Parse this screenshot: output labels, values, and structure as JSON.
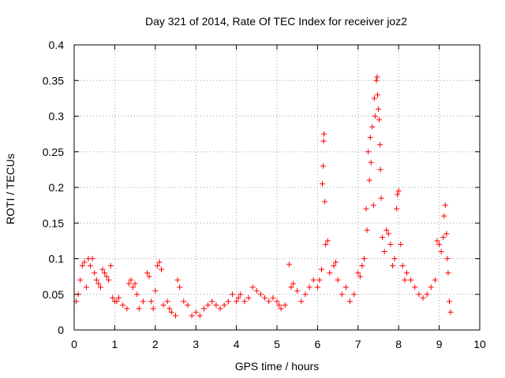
{
  "chart_data": {
    "type": "scatter",
    "title": "Day 321 of 2014, Rate Of TEC Index for receiver joz2",
    "xlabel": "GPS time / hours",
    "ylabel": "ROTI / TECUs",
    "xlim": [
      0,
      10
    ],
    "ylim": [
      0,
      0.4
    ],
    "xticks": [
      "0",
      "1",
      "2",
      "3",
      "4",
      "5",
      "6",
      "7",
      "8",
      "9",
      "10"
    ],
    "yticks": [
      "0",
      "0.05",
      "0.1",
      "0.15",
      "0.2",
      "0.25",
      "0.3",
      "0.35",
      "0.4"
    ],
    "grid": true,
    "marker": "+",
    "color": "#ff0000",
    "series": [
      {
        "name": "ROTI joz2",
        "points": [
          [
            0.05,
            0.04
          ],
          [
            0.1,
            0.05
          ],
          [
            0.15,
            0.07
          ],
          [
            0.2,
            0.09
          ],
          [
            0.25,
            0.095
          ],
          [
            0.3,
            0.06
          ],
          [
            0.35,
            0.1
          ],
          [
            0.4,
            0.09
          ],
          [
            0.45,
            0.1
          ],
          [
            0.5,
            0.08
          ],
          [
            0.55,
            0.07
          ],
          [
            0.6,
            0.065
          ],
          [
            0.65,
            0.06
          ],
          [
            0.7,
            0.085
          ],
          [
            0.75,
            0.08
          ],
          [
            0.8,
            0.075
          ],
          [
            0.85,
            0.07
          ],
          [
            0.9,
            0.09
          ],
          [
            0.95,
            0.045
          ],
          [
            1.0,
            0.04
          ],
          [
            1.05,
            0.04
          ],
          [
            1.1,
            0.045
          ],
          [
            1.2,
            0.035
          ],
          [
            1.3,
            0.03
          ],
          [
            1.35,
            0.065
          ],
          [
            1.4,
            0.07
          ],
          [
            1.45,
            0.06
          ],
          [
            1.5,
            0.065
          ],
          [
            1.55,
            0.05
          ],
          [
            1.6,
            0.03
          ],
          [
            1.7,
            0.04
          ],
          [
            1.8,
            0.08
          ],
          [
            1.85,
            0.075
          ],
          [
            1.9,
            0.04
          ],
          [
            1.95,
            0.03
          ],
          [
            2.0,
            0.055
          ],
          [
            2.05,
            0.09
          ],
          [
            2.1,
            0.095
          ],
          [
            2.15,
            0.085
          ],
          [
            2.2,
            0.035
          ],
          [
            2.3,
            0.04
          ],
          [
            2.35,
            0.03
          ],
          [
            2.4,
            0.025
          ],
          [
            2.5,
            0.02
          ],
          [
            2.55,
            0.07
          ],
          [
            2.6,
            0.06
          ],
          [
            2.7,
            0.04
          ],
          [
            2.8,
            0.035
          ],
          [
            2.9,
            0.02
          ],
          [
            3.0,
            0.025
          ],
          [
            3.1,
            0.02
          ],
          [
            3.2,
            0.03
          ],
          [
            3.3,
            0.035
          ],
          [
            3.4,
            0.04
          ],
          [
            3.5,
            0.035
          ],
          [
            3.6,
            0.03
          ],
          [
            3.7,
            0.035
          ],
          [
            3.8,
            0.04
          ],
          [
            3.9,
            0.05
          ],
          [
            4.0,
            0.04
          ],
          [
            4.05,
            0.045
          ],
          [
            4.1,
            0.05
          ],
          [
            4.2,
            0.04
          ],
          [
            4.3,
            0.045
          ],
          [
            4.4,
            0.06
          ],
          [
            4.5,
            0.055
          ],
          [
            4.6,
            0.05
          ],
          [
            4.7,
            0.045
          ],
          [
            4.8,
            0.04
          ],
          [
            4.9,
            0.045
          ],
          [
            5.0,
            0.04
          ],
          [
            5.05,
            0.035
          ],
          [
            5.1,
            0.03
          ],
          [
            5.2,
            0.035
          ],
          [
            5.3,
            0.092
          ],
          [
            5.35,
            0.06
          ],
          [
            5.4,
            0.065
          ],
          [
            5.5,
            0.055
          ],
          [
            5.6,
            0.04
          ],
          [
            5.7,
            0.05
          ],
          [
            5.8,
            0.06
          ],
          [
            5.9,
            0.07
          ],
          [
            6.0,
            0.06
          ],
          [
            6.05,
            0.07
          ],
          [
            6.1,
            0.085
          ],
          [
            6.12,
            0.205
          ],
          [
            6.14,
            0.23
          ],
          [
            6.15,
            0.265
          ],
          [
            6.16,
            0.275
          ],
          [
            6.18,
            0.18
          ],
          [
            6.2,
            0.12
          ],
          [
            6.25,
            0.125
          ],
          [
            6.3,
            0.08
          ],
          [
            6.4,
            0.09
          ],
          [
            6.45,
            0.095
          ],
          [
            6.5,
            0.07
          ],
          [
            6.6,
            0.05
          ],
          [
            6.7,
            0.06
          ],
          [
            6.8,
            0.04
          ],
          [
            6.9,
            0.05
          ],
          [
            7.0,
            0.08
          ],
          [
            7.05,
            0.075
          ],
          [
            7.1,
            0.09
          ],
          [
            7.15,
            0.1
          ],
          [
            7.2,
            0.17
          ],
          [
            7.22,
            0.14
          ],
          [
            7.25,
            0.25
          ],
          [
            7.28,
            0.21
          ],
          [
            7.3,
            0.27
          ],
          [
            7.32,
            0.235
          ],
          [
            7.35,
            0.285
          ],
          [
            7.38,
            0.175
          ],
          [
            7.4,
            0.325
          ],
          [
            7.42,
            0.3
          ],
          [
            7.45,
            0.35
          ],
          [
            7.47,
            0.355
          ],
          [
            7.48,
            0.33
          ],
          [
            7.5,
            0.31
          ],
          [
            7.52,
            0.295
          ],
          [
            7.54,
            0.26
          ],
          [
            7.55,
            0.225
          ],
          [
            7.57,
            0.185
          ],
          [
            7.6,
            0.13
          ],
          [
            7.65,
            0.11
          ],
          [
            7.7,
            0.14
          ],
          [
            7.75,
            0.135
          ],
          [
            7.8,
            0.12
          ],
          [
            7.85,
            0.09
          ],
          [
            7.9,
            0.1
          ],
          [
            7.95,
            0.17
          ],
          [
            7.97,
            0.19
          ],
          [
            8.0,
            0.195
          ],
          [
            8.05,
            0.12
          ],
          [
            8.1,
            0.09
          ],
          [
            8.15,
            0.07
          ],
          [
            8.2,
            0.08
          ],
          [
            8.3,
            0.07
          ],
          [
            8.4,
            0.06
          ],
          [
            8.5,
            0.05
          ],
          [
            8.6,
            0.045
          ],
          [
            8.7,
            0.05
          ],
          [
            8.8,
            0.06
          ],
          [
            8.9,
            0.07
          ],
          [
            8.95,
            0.125
          ],
          [
            9.0,
            0.12
          ],
          [
            9.05,
            0.11
          ],
          [
            9.1,
            0.13
          ],
          [
            9.12,
            0.16
          ],
          [
            9.15,
            0.175
          ],
          [
            9.18,
            0.135
          ],
          [
            9.2,
            0.1
          ],
          [
            9.22,
            0.08
          ],
          [
            9.25,
            0.04
          ],
          [
            9.28,
            0.025
          ]
        ]
      }
    ]
  }
}
